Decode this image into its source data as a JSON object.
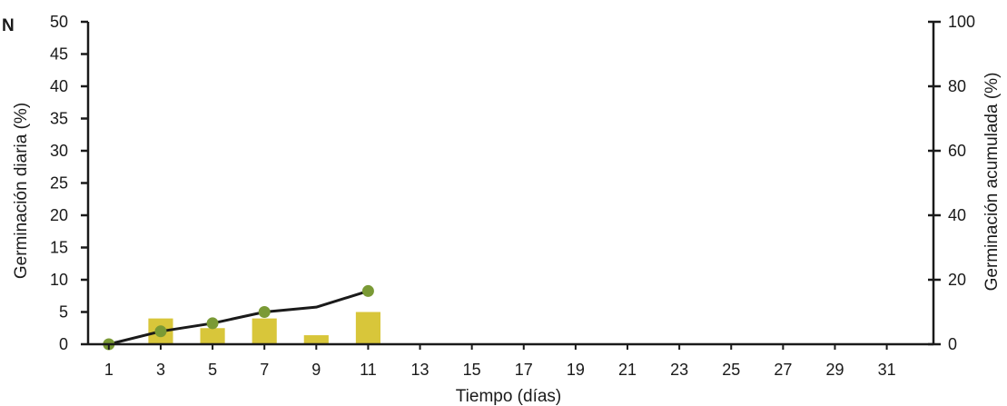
{
  "chart_data": {
    "type": "bar",
    "panel_label": "N",
    "xlabel": "Tiempo (días)",
    "ylabel_left": "Germinación diaria (%)",
    "ylabel_right": "Germinación acumulada (%)",
    "x_ticks": [
      1,
      3,
      5,
      7,
      9,
      11,
      13,
      15,
      17,
      19,
      21,
      23,
      25,
      27,
      29,
      31
    ],
    "xlim": [
      0.2,
      32.8
    ],
    "y_left_ticks": [
      0,
      5,
      10,
      15,
      20,
      25,
      30,
      35,
      40,
      45,
      50
    ],
    "ylim_left": [
      0,
      50
    ],
    "y_right_ticks": [
      0,
      20,
      40,
      60,
      80,
      100
    ],
    "ylim_right": [
      0,
      100
    ],
    "grid": false,
    "colors": {
      "bars": "#d8c63a",
      "line": "#1a1a1a",
      "markers": "#7a9a35"
    },
    "series": [
      {
        "kind": "bar",
        "axis": "left",
        "x": [
          3,
          5,
          7,
          9,
          11
        ],
        "values": [
          4,
          2.5,
          4,
          1.4,
          5
        ]
      },
      {
        "kind": "line",
        "axis": "right",
        "x": [
          1,
          3,
          5,
          7,
          9,
          11
        ],
        "values": [
          0,
          4,
          6.5,
          10,
          11.5,
          16.5
        ],
        "markers_at": [
          1,
          3,
          5,
          7,
          11
        ]
      }
    ]
  }
}
